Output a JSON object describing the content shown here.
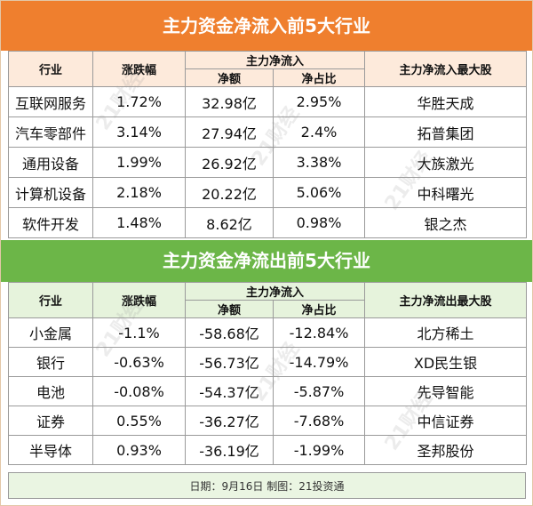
{
  "inflow": {
    "title": "主力资金净流入前5大行业",
    "headers": {
      "industry": "行业",
      "change": "涨跌幅",
      "group": "主力净流入",
      "amount": "净额",
      "ratio": "净占比",
      "top_stock": "主力净流入最大股"
    },
    "rows": [
      {
        "industry": "互联网服务",
        "change": "1.72%",
        "amount": "32.98亿",
        "ratio": "2.95%",
        "top_stock": "华胜天成"
      },
      {
        "industry": "汽车零部件",
        "change": "3.14%",
        "amount": "27.94亿",
        "ratio": "2.4%",
        "top_stock": "拓普集团"
      },
      {
        "industry": "通用设备",
        "change": "1.99%",
        "amount": "26.92亿",
        "ratio": "3.38%",
        "top_stock": "大族激光"
      },
      {
        "industry": "计算机设备",
        "change": "2.18%",
        "amount": "20.22亿",
        "ratio": "5.06%",
        "top_stock": "中科曙光"
      },
      {
        "industry": "软件开发",
        "change": "1.48%",
        "amount": "8.62亿",
        "ratio": "0.98%",
        "top_stock": "银之杰"
      }
    ]
  },
  "outflow": {
    "title": "主力资金净流出前5大行业",
    "headers": {
      "industry": "行业",
      "change": "涨跌幅",
      "group": "主力净流入",
      "amount": "净额",
      "ratio": "净占比",
      "top_stock": "主力净流出最大股"
    },
    "rows": [
      {
        "industry": "小金属",
        "change": "-1.1%",
        "amount": "-58.68亿",
        "ratio": "-12.84%",
        "top_stock": "北方稀土"
      },
      {
        "industry": "银行",
        "change": "-0.63%",
        "amount": "-56.73亿",
        "ratio": "-14.79%",
        "top_stock": "XD民生银"
      },
      {
        "industry": "电池",
        "change": "-0.08%",
        "amount": "-54.37亿",
        "ratio": "-5.87%",
        "top_stock": "先导智能"
      },
      {
        "industry": "证券",
        "change": "0.55%",
        "amount": "-36.27亿",
        "ratio": "-7.68%",
        "top_stock": "中信证券"
      },
      {
        "industry": "半导体",
        "change": "0.93%",
        "amount": "-36.19亿",
        "ratio": "-1.99%",
        "top_stock": "圣邦股份"
      }
    ]
  },
  "footer": "日期：9月16日 制图：21投资通",
  "watermark": "21财经",
  "colors": {
    "inflow_banner": "#ef7f2e",
    "inflow_header": "#fdeadb",
    "outflow_banner": "#6cb648",
    "outflow_header": "#e6f3dc"
  }
}
